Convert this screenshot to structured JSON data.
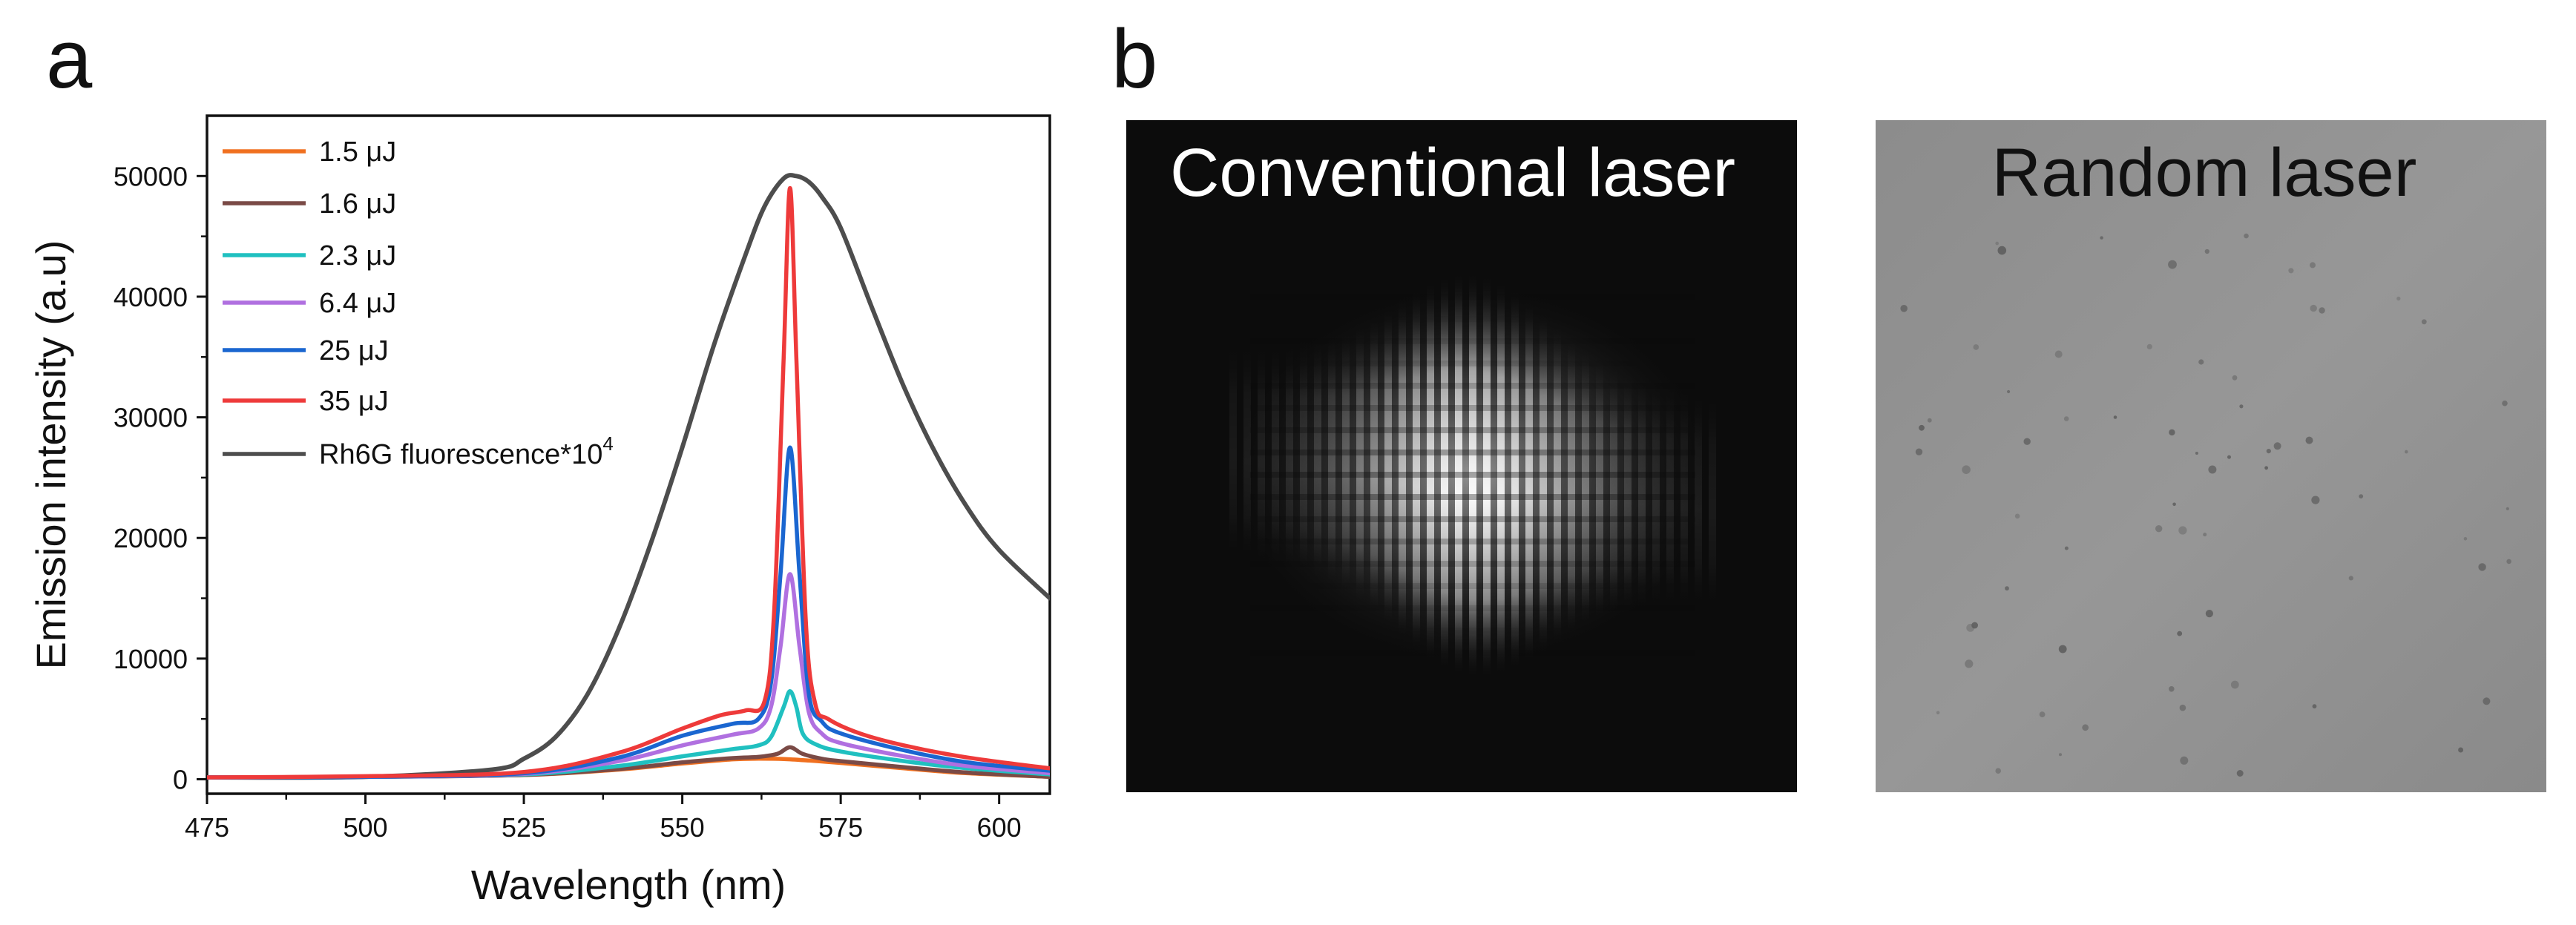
{
  "panels": {
    "a": "a",
    "b": "b"
  },
  "chart_data": {
    "type": "line",
    "title": "",
    "xlabel": "Wavelength (nm)",
    "ylabel": "Emission intensity (a.u)",
    "xlim": [
      475,
      608
    ],
    "ylim": [
      -1200,
      55000
    ],
    "xticks": [
      475,
      500,
      525,
      550,
      575,
      600
    ],
    "yticks": [
      0,
      10000,
      20000,
      30000,
      40000,
      50000
    ],
    "legend_position": "top-left",
    "series": [
      {
        "name": "1.5 μJ",
        "color": "#f07020",
        "x": [
          475,
          500,
          525,
          540,
          550,
          558,
          562,
          566,
          570,
          575,
          585,
          595,
          608
        ],
        "y": [
          150,
          200,
          350,
          800,
          1300,
          1650,
          1700,
          1680,
          1550,
          1350,
          900,
          500,
          200
        ]
      },
      {
        "name": "1.6 μJ",
        "color": "#7a4a46",
        "x": [
          475,
          500,
          525,
          540,
          550,
          558,
          562,
          565,
          567,
          569,
          572,
          575,
          585,
          595,
          608
        ],
        "y": [
          150,
          200,
          350,
          850,
          1400,
          1750,
          1850,
          2100,
          2650,
          2100,
          1700,
          1500,
          1000,
          550,
          200
        ]
      },
      {
        "name": "2.3 μJ",
        "color": "#20c0c0",
        "x": [
          475,
          500,
          525,
          540,
          550,
          558,
          562,
          564,
          566,
          567,
          568,
          569,
          571,
          575,
          585,
          595,
          608
        ],
        "y": [
          150,
          200,
          400,
          1100,
          1900,
          2500,
          2800,
          3500,
          6000,
          7300,
          6000,
          3800,
          2900,
          2300,
          1500,
          900,
          400
        ]
      },
      {
        "name": "6.4 μJ",
        "color": "#b070e0",
        "x": [
          475,
          500,
          525,
          540,
          550,
          558,
          562,
          564,
          565.5,
          567,
          568.5,
          570,
          572,
          575,
          585,
          595,
          608
        ],
        "y": [
          150,
          200,
          450,
          1500,
          2800,
          3700,
          4200,
          6000,
          11000,
          17000,
          11000,
          5500,
          3800,
          3000,
          1900,
          1100,
          500
        ]
      },
      {
        "name": "25 μJ",
        "color": "#1a66d0",
        "x": [
          475,
          500,
          525,
          540,
          550,
          558,
          562,
          564,
          565.5,
          567,
          568.5,
          570,
          572,
          575,
          585,
          595,
          608
        ],
        "y": [
          150,
          200,
          500,
          1800,
          3600,
          4600,
          5000,
          8000,
          17000,
          27500,
          17000,
          7000,
          4800,
          3800,
          2400,
          1400,
          700
        ]
      },
      {
        "name": "35 μJ",
        "color": "#ee3a3a",
        "x": [
          475,
          500,
          525,
          540,
          550,
          556,
          560,
          563,
          564.5,
          566,
          567,
          568,
          569.5,
          571,
          573,
          578,
          585,
          595,
          608
        ],
        "y": [
          150,
          250,
          600,
          2200,
          4200,
          5300,
          5700,
          6500,
          14000,
          35000,
          49000,
          35000,
          13000,
          6200,
          5000,
          3800,
          2800,
          1800,
          900
        ]
      },
      {
        "name": "Rh6G fluorescence*10",
        "name_sup": "4",
        "color": "#4d4d4d",
        "x": [
          475,
          500,
          520,
          525,
          530,
          535,
          540,
          545,
          550,
          555,
          560,
          563,
          566,
          568,
          570,
          572,
          575,
          580,
          585,
          590,
          595,
          600,
          608
        ],
        "y": [
          150,
          200,
          800,
          1700,
          3500,
          7000,
          12500,
          19500,
          27500,
          36000,
          43500,
          47500,
          49800,
          50000,
          49500,
          48300,
          45700,
          39000,
          32500,
          27000,
          22500,
          19000,
          15000
        ]
      }
    ]
  },
  "images": {
    "left_title": "Conventional laser",
    "right_title": "Random laser"
  }
}
